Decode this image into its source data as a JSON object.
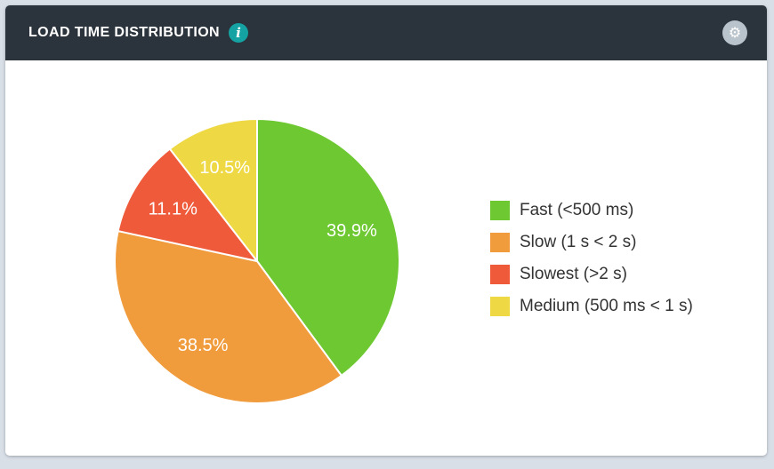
{
  "widget": {
    "title": "LOAD TIME DISTRIBUTION"
  },
  "icons": {
    "info_glyph": "i",
    "gear_glyph": "⚙"
  },
  "colors": {
    "page_bg": "#d9dfe7",
    "card_bg": "#ffffff",
    "header_bg": "#2b343c",
    "info_badge": "#15a2a2",
    "gear_circle": "#b8c3cb",
    "slice_green": "#6ec832",
    "slice_orange": "#f09b3c",
    "slice_red": "#ee5a3a",
    "slice_yellow": "#eed843"
  },
  "chart_data": {
    "type": "pie",
    "title": "Load Time Distribution",
    "start_angle_deg": 0,
    "direction": "clockwise",
    "legend_position": "right",
    "slices": [
      {
        "label": "Fast (<500 ms)",
        "value": 39.9,
        "display": "39.9%",
        "color": "#6ec832"
      },
      {
        "label": "Slow (1 s < 2 s)",
        "value": 38.5,
        "display": "38.5%",
        "color": "#f09b3c"
      },
      {
        "label": "Slowest (>2 s)",
        "value": 11.1,
        "display": "11.1%",
        "color": "#ee5a3a"
      },
      {
        "label": "Medium (500 ms < 1 s)",
        "value": 10.5,
        "display": "10.5%",
        "color": "#eed843"
      }
    ]
  }
}
